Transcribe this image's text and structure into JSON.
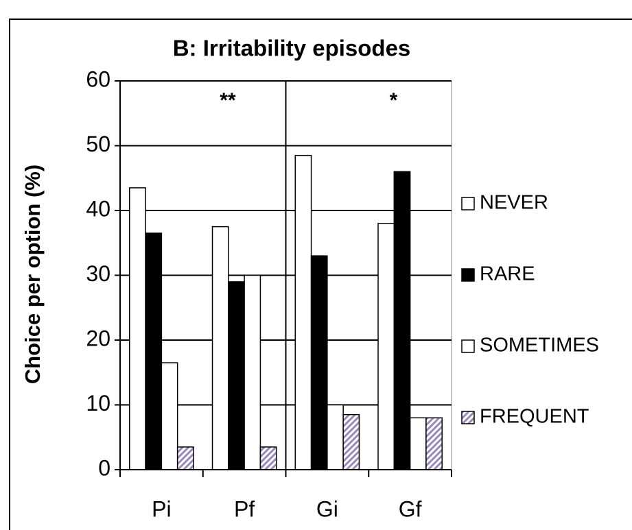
{
  "chart_data": {
    "type": "bar",
    "title": "B: Irritability episodes",
    "ylabel": "Choice per option (%)",
    "categories": [
      "Pi",
      "Pf",
      "Gi",
      "Gf"
    ],
    "series": [
      {
        "name": "NEVER",
        "color": "#ffffff",
        "values": [
          43.5,
          37.5,
          48.5,
          38
        ]
      },
      {
        "name": "RARE",
        "color": "#000000",
        "values": [
          36.5,
          29,
          33,
          46
        ]
      },
      {
        "name": "SOMETIMES",
        "color": "#ffffff",
        "values": [
          16.5,
          30,
          10,
          8
        ]
      },
      {
        "name": "FREQUENT",
        "color": "#9a88b8",
        "hatch": true,
        "values": [
          3.5,
          3.5,
          8.5,
          8
        ]
      }
    ],
    "annotations": [
      "**",
      "*"
    ],
    "ylim": [
      0,
      60
    ],
    "yticks": [
      0,
      10,
      20,
      30,
      40,
      50,
      60
    ],
    "grid": true,
    "legend": "right"
  }
}
